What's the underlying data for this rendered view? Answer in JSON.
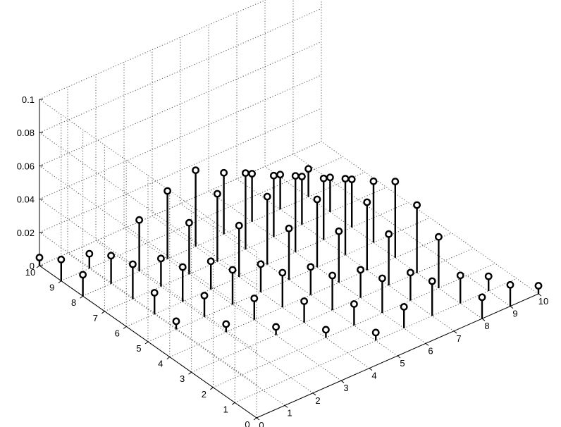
{
  "chart_data": {
    "type": "stem3",
    "title": "",
    "xlabel": "",
    "ylabel": "",
    "zlabel": "",
    "xlim": [
      0,
      10
    ],
    "ylim": [
      0,
      10
    ],
    "zlim": [
      0,
      0.1
    ],
    "xticks": [
      0,
      1,
      2,
      3,
      4,
      5,
      6,
      7,
      8,
      9,
      10
    ],
    "yticks": [
      0,
      1,
      2,
      3,
      4,
      5,
      6,
      7,
      8,
      9,
      10
    ],
    "zticks": [
      0,
      0.02,
      0.04,
      0.06,
      0.08,
      0.1
    ],
    "xtick_labels": [
      "0",
      "1",
      "2",
      "3",
      "4",
      "5",
      "6",
      "7",
      "8",
      "9",
      "10"
    ],
    "ytick_labels": [
      "0",
      "1",
      "2",
      "3",
      "4",
      "5",
      "6",
      "7",
      "8",
      "9",
      "10"
    ],
    "ztick_labels": [
      "0",
      "0.02",
      "0.04",
      "0.06",
      "0.08",
      "0.1"
    ],
    "grid": true,
    "marker": "circle",
    "colors": {
      "stem": "#000000",
      "grid": "#555555",
      "box": "#000000"
    },
    "points": [
      {
        "x": 1,
        "y": 5,
        "z": 0.004
      },
      {
        "x": 2,
        "y": 4,
        "z": 0.004
      },
      {
        "x": 3,
        "y": 3,
        "z": 0.004
      },
      {
        "x": 4,
        "y": 2,
        "z": 0.004
      },
      {
        "x": 5,
        "y": 1,
        "z": 0.004
      },
      {
        "x": 1,
        "y": 6,
        "z": 0.012
      },
      {
        "x": 2,
        "y": 5,
        "z": 0.012
      },
      {
        "x": 3,
        "y": 4,
        "z": 0.012
      },
      {
        "x": 4,
        "y": 3,
        "z": 0.012
      },
      {
        "x": 5,
        "y": 2,
        "z": 0.012
      },
      {
        "x": 6,
        "y": 1,
        "z": 0.012
      },
      {
        "x": 1,
        "y": 7,
        "z": 0.02
      },
      {
        "x": 2,
        "y": 6,
        "z": 0.02
      },
      {
        "x": 3,
        "y": 5,
        "z": 0.02
      },
      {
        "x": 4,
        "y": 4,
        "z": 0.02
      },
      {
        "x": 5,
        "y": 3,
        "z": 0.02
      },
      {
        "x": 6,
        "y": 2,
        "z": 0.02
      },
      {
        "x": 7,
        "y": 1,
        "z": 0.02
      },
      {
        "x": 1,
        "y": 8,
        "z": 0.016
      },
      {
        "x": 2,
        "y": 7,
        "z": 0.016
      },
      {
        "x": 3,
        "y": 6,
        "z": 0.016
      },
      {
        "x": 4,
        "y": 5,
        "z": 0.016
      },
      {
        "x": 5,
        "y": 4,
        "z": 0.016
      },
      {
        "x": 6,
        "y": 3,
        "z": 0.016
      },
      {
        "x": 7,
        "y": 2,
        "z": 0.016
      },
      {
        "x": 8,
        "y": 1,
        "z": 0.016
      },
      {
        "x": 2,
        "y": 8,
        "z": 0.03
      },
      {
        "x": 3,
        "y": 7,
        "z": 0.03
      },
      {
        "x": 4,
        "y": 6,
        "z": 0.03
      },
      {
        "x": 5,
        "y": 5,
        "z": 0.03
      },
      {
        "x": 6,
        "y": 4,
        "z": 0.03
      },
      {
        "x": 7,
        "y": 3,
        "z": 0.03
      },
      {
        "x": 8,
        "y": 2,
        "z": 0.03
      },
      {
        "x": 3,
        "y": 8,
        "z": 0.04
      },
      {
        "x": 4,
        "y": 7,
        "z": 0.04
      },
      {
        "x": 5,
        "y": 6,
        "z": 0.04
      },
      {
        "x": 6,
        "y": 5,
        "z": 0.04
      },
      {
        "x": 7,
        "y": 4,
        "z": 0.04
      },
      {
        "x": 8,
        "y": 3,
        "z": 0.04
      },
      {
        "x": 4,
        "y": 8,
        "z": 0.045
      },
      {
        "x": 5,
        "y": 7,
        "z": 0.045
      },
      {
        "x": 6,
        "y": 6,
        "z": 0.045
      },
      {
        "x": 7,
        "y": 5,
        "z": 0.045
      },
      {
        "x": 8,
        "y": 4,
        "z": 0.045
      },
      {
        "x": 5,
        "y": 8,
        "z": 0.036
      },
      {
        "x": 6,
        "y": 7,
        "z": 0.036
      },
      {
        "x": 7,
        "y": 6,
        "z": 0.036
      },
      {
        "x": 8,
        "y": 5,
        "z": 0.036
      },
      {
        "x": 6,
        "y": 8,
        "z": 0.028
      },
      {
        "x": 7,
        "y": 7,
        "z": 0.028
      },
      {
        "x": 8,
        "y": 6,
        "z": 0.028
      },
      {
        "x": 7,
        "y": 8,
        "z": 0.02
      },
      {
        "x": 8,
        "y": 7,
        "z": 0.02
      },
      {
        "x": 8,
        "y": 8,
        "z": 0.016
      },
      {
        "x": 1,
        "y": 9,
        "z": 0.008
      },
      {
        "x": 9,
        "y": 1,
        "z": 0.008
      },
      {
        "x": 0,
        "y": 8,
        "z": 0.012
      },
      {
        "x": 8,
        "y": 0,
        "z": 0.012
      },
      {
        "x": 0,
        "y": 9,
        "z": 0.012
      },
      {
        "x": 9,
        "y": 0,
        "z": 0.012
      },
      {
        "x": 0,
        "y": 10,
        "z": 0.004
      },
      {
        "x": 10,
        "y": 0,
        "z": 0.004
      }
    ]
  }
}
